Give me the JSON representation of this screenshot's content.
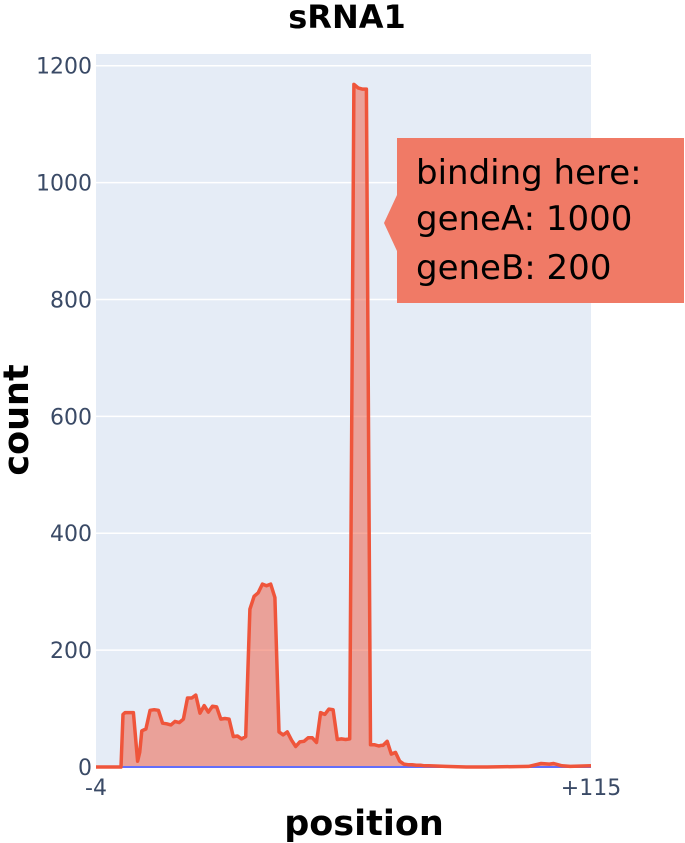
{
  "chart_data": {
    "type": "area",
    "title": "sRNA1",
    "xlabel": "position",
    "ylabel": "count",
    "xlim": [
      -4,
      115
    ],
    "ylim": [
      0,
      1220
    ],
    "x_ticks": [
      {
        "value": -4,
        "label": "-4"
      },
      {
        "value": 115,
        "label": "+115"
      }
    ],
    "y_ticks": [
      0,
      200,
      400,
      600,
      800,
      1000,
      1200
    ],
    "grid": true,
    "colors": {
      "plot_bg": "#e5ecf6",
      "series_line": "#ef553b",
      "series_fill": "rgba(239,85,59,0.5)",
      "baseline": "#636efa",
      "tooltip_bg": "#f07a66"
    },
    "series": [
      {
        "x": [
          -4,
          0,
          2,
          2.5,
          3,
          4,
          5,
          6,
          6.5,
          7,
          8,
          9,
          10,
          11,
          12,
          13,
          14,
          15,
          16,
          17,
          18,
          19,
          20,
          21,
          22,
          23,
          24,
          25,
          26,
          27,
          28,
          29,
          30,
          31,
          32,
          33,
          34,
          35,
          36,
          37,
          38,
          39,
          40,
          41,
          42,
          43,
          44,
          45,
          46,
          47,
          48,
          49,
          50,
          51,
          52,
          53,
          54,
          55,
          56,
          57,
          58,
          59,
          60,
          61,
          62,
          63,
          64,
          64.5,
          65,
          66,
          67,
          68,
          69,
          70,
          71,
          72,
          73,
          74,
          75,
          76,
          80,
          85,
          90,
          100,
          103,
          105,
          106,
          108,
          110,
          115
        ],
        "y": [
          0,
          0,
          0,
          90,
          93,
          93,
          93,
          10,
          25,
          62,
          65,
          97,
          98,
          97,
          75,
          74,
          72,
          78,
          76,
          82,
          118,
          118,
          123,
          92,
          105,
          94,
          104,
          103,
          82,
          83,
          82,
          52,
          53,
          48,
          52,
          270,
          292,
          298,
          313,
          310,
          313,
          290,
          60,
          55,
          60,
          46,
          35,
          43,
          44,
          50,
          50,
          42,
          93,
          90,
          99,
          98,
          47,
          48,
          47,
          48,
          1168,
          1162,
          1160,
          1160,
          38,
          38,
          36,
          37,
          37,
          44,
          22,
          25,
          10,
          5,
          4,
          4,
          3,
          3,
          2,
          2,
          1,
          0,
          0,
          1,
          6,
          5,
          6,
          2,
          1,
          2
        ]
      }
    ],
    "annotation": {
      "lines": [
        "binding here:",
        "geneA: 1000",
        "geneB: 200"
      ]
    }
  }
}
